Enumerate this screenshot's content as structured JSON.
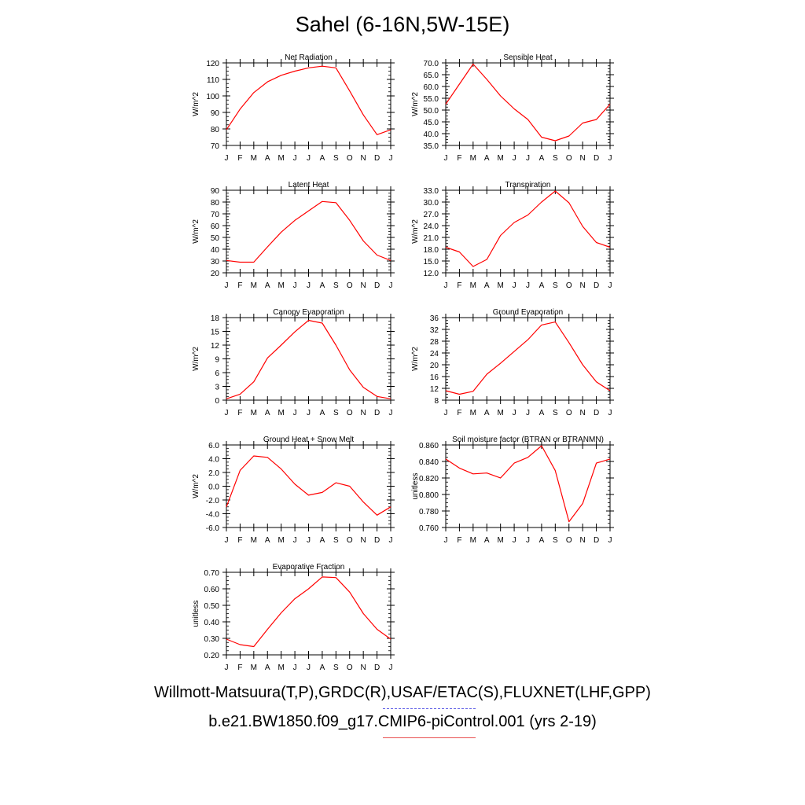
{
  "figure": {
    "title": "Sahel (6-16N,5W-15E)",
    "legend": [
      {
        "label": "Willmott-Matsuura(T,P),GRDC(R),USAF/ETAC(S),FLUXNET(LHF,GPP)",
        "style": "dashed",
        "color": "#5a5ae6"
      },
      {
        "label": "b.e21.BW1850.f09_g17.CMIP6-piControl.001 (yrs 2-19)",
        "style": "solid",
        "color": "#e85050"
      }
    ],
    "line_color": "#ff0000"
  },
  "chart_data": [
    {
      "type": "line",
      "title": "Net Radiation",
      "ylabel": "W/m^2",
      "categories": [
        "J",
        "F",
        "M",
        "A",
        "M",
        "J",
        "J",
        "A",
        "S",
        "O",
        "N",
        "D",
        "J"
      ],
      "ylim": [
        70,
        120
      ],
      "yticks": [
        70,
        80,
        90,
        100,
        110,
        120
      ],
      "ytick_labels": [
        "70",
        "80",
        "90",
        "100",
        "110",
        "120"
      ],
      "series": [
        {
          "values": [
            79.5,
            92,
            102,
            108.5,
            112.5,
            115,
            117,
            118,
            117,
            103,
            88.5,
            76.5,
            79.5
          ]
        }
      ]
    },
    {
      "type": "line",
      "title": "Sensible Heat",
      "ylabel": "W/m^2",
      "categories": [
        "J",
        "F",
        "M",
        "A",
        "M",
        "J",
        "J",
        "A",
        "S",
        "O",
        "N",
        "D",
        "J"
      ],
      "ylim": [
        35,
        70
      ],
      "yticks": [
        35,
        40,
        45,
        50,
        55,
        60,
        65,
        70
      ],
      "ytick_labels": [
        "35.0",
        "40.0",
        "45.0",
        "50.0",
        "55.0",
        "60.0",
        "65.0",
        "70.0"
      ],
      "series": [
        {
          "values": [
            52.5,
            61,
            69.5,
            63,
            56,
            50.5,
            46,
            38.5,
            37,
            39,
            44.5,
            46,
            52.5
          ]
        }
      ]
    },
    {
      "type": "line",
      "title": "Latent Heat",
      "ylabel": "W/m^2",
      "categories": [
        "J",
        "F",
        "M",
        "A",
        "M",
        "J",
        "J",
        "A",
        "S",
        "O",
        "N",
        "D",
        "J"
      ],
      "ylim": [
        20,
        90
      ],
      "yticks": [
        20,
        30,
        40,
        50,
        60,
        70,
        80,
        90
      ],
      "ytick_labels": [
        "20",
        "30",
        "40",
        "50",
        "60",
        "70",
        "80",
        "90"
      ],
      "series": [
        {
          "values": [
            30.5,
            29,
            29,
            42,
            54.5,
            64.5,
            72.5,
            80.5,
            79.5,
            64.5,
            47,
            35,
            30.5
          ]
        }
      ]
    },
    {
      "type": "line",
      "title": "Transpiration",
      "ylabel": "W/m^2",
      "categories": [
        "J",
        "F",
        "M",
        "A",
        "M",
        "J",
        "J",
        "A",
        "S",
        "O",
        "N",
        "D",
        "J"
      ],
      "ylim": [
        12,
        33
      ],
      "yticks": [
        12,
        15,
        18,
        21,
        24,
        27,
        30,
        33
      ],
      "ytick_labels": [
        "12.0",
        "15.0",
        "18.0",
        "21.0",
        "24.0",
        "27.0",
        "30.0",
        "33.0"
      ],
      "series": [
        {
          "values": [
            18.5,
            17.3,
            13.6,
            15.4,
            21.5,
            24.8,
            26.7,
            30,
            32.8,
            29.8,
            23.8,
            19.7,
            18.5
          ]
        }
      ]
    },
    {
      "type": "line",
      "title": "Canopy Evaporation",
      "ylabel": "W/m^2",
      "categories": [
        "J",
        "F",
        "M",
        "A",
        "M",
        "J",
        "J",
        "A",
        "S",
        "O",
        "N",
        "D",
        "J"
      ],
      "ylim": [
        0,
        18
      ],
      "yticks": [
        0,
        3,
        6,
        9,
        12,
        15,
        18
      ],
      "ytick_labels": [
        "0",
        "3",
        "6",
        "9",
        "12",
        "15",
        "18"
      ],
      "series": [
        {
          "values": [
            0.3,
            1.3,
            4,
            9.2,
            12,
            14.9,
            17.4,
            16.8,
            12,
            6.6,
            2.8,
            0.8,
            0.3
          ]
        }
      ]
    },
    {
      "type": "line",
      "title": "Ground Evaporation",
      "ylabel": "W/m^2",
      "categories": [
        "J",
        "F",
        "M",
        "A",
        "M",
        "J",
        "J",
        "A",
        "S",
        "O",
        "N",
        "D",
        "J"
      ],
      "ylim": [
        8,
        36
      ],
      "yticks": [
        8,
        12,
        16,
        20,
        24,
        28,
        32,
        36
      ],
      "ytick_labels": [
        "8",
        "12",
        "16",
        "20",
        "24",
        "28",
        "32",
        "36"
      ],
      "series": [
        {
          "values": [
            11.2,
            10,
            11,
            16.8,
            20.5,
            24.5,
            28.5,
            33.5,
            34.5,
            27.5,
            20,
            14.2,
            11.2
          ]
        }
      ]
    },
    {
      "type": "line",
      "title": "Ground Heat + Snow Melt",
      "ylabel": "W/m^2",
      "categories": [
        "J",
        "F",
        "M",
        "A",
        "M",
        "J",
        "J",
        "A",
        "S",
        "O",
        "N",
        "D",
        "J"
      ],
      "ylim": [
        -6,
        6
      ],
      "yticks": [
        -6,
        -4,
        -2,
        0,
        2,
        4,
        6
      ],
      "ytick_labels": [
        "-6.0",
        "-4.0",
        "-2.0",
        "0.0",
        "2.0",
        "4.0",
        "6.0"
      ],
      "series": [
        {
          "values": [
            -3,
            2.3,
            4.4,
            4.2,
            2.5,
            0.3,
            -1.3,
            -0.9,
            0.5,
            0,
            -2.3,
            -4.2,
            -3
          ]
        }
      ]
    },
    {
      "type": "line",
      "title": "Soil moisture factor (BTRAN or BTRANMN)",
      "ylabel": "unitless",
      "categories": [
        "J",
        "F",
        "M",
        "A",
        "M",
        "J",
        "J",
        "A",
        "S",
        "O",
        "N",
        "D",
        "J"
      ],
      "ylim": [
        0.76,
        0.86
      ],
      "yticks": [
        0.76,
        0.78,
        0.8,
        0.82,
        0.84,
        0.86
      ],
      "ytick_labels": [
        "0.760",
        "0.780",
        "0.800",
        "0.820",
        "0.840",
        "0.860"
      ],
      "series": [
        {
          "values": [
            0.843,
            0.832,
            0.825,
            0.826,
            0.82,
            0.838,
            0.845,
            0.859,
            0.829,
            0.767,
            0.789,
            0.838,
            0.843
          ]
        }
      ]
    },
    {
      "type": "line",
      "title": "Evaporative Fraction",
      "ylabel": "unitless",
      "categories": [
        "J",
        "F",
        "M",
        "A",
        "M",
        "J",
        "J",
        "A",
        "S",
        "O",
        "N",
        "D",
        "J"
      ],
      "ylim": [
        0.2,
        0.7
      ],
      "yticks": [
        0.2,
        0.3,
        0.4,
        0.5,
        0.6,
        0.7
      ],
      "ytick_labels": [
        "0.20",
        "0.30",
        "0.40",
        "0.50",
        "0.60",
        "0.70"
      ],
      "series": [
        {
          "values": [
            0.295,
            0.262,
            0.25,
            0.355,
            0.455,
            0.54,
            0.6,
            0.672,
            0.668,
            0.58,
            0.45,
            0.355,
            0.295
          ]
        }
      ]
    }
  ]
}
